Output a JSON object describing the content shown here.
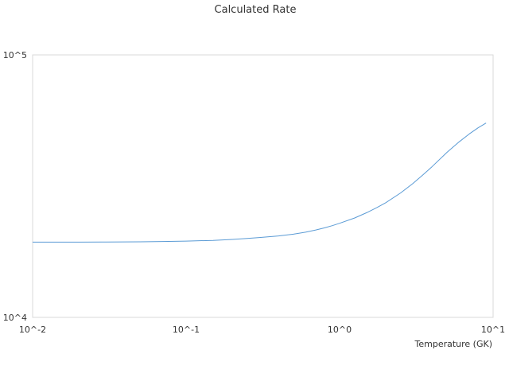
{
  "chart_data": {
    "type": "line",
    "title": "Calculated Rate",
    "xlabel": "Temperature (GK)",
    "ylabel": "",
    "x_scale": "log",
    "y_scale": "log",
    "xlim": [
      0.01,
      10
    ],
    "ylim": [
      10000,
      100000
    ],
    "x_tick_labels": [
      "10^-2",
      "10^-1",
      "10^0",
      "10^1"
    ],
    "y_tick_labels": [
      "10^4",
      "10^5"
    ],
    "grid": false,
    "legend": "none",
    "series": [
      {
        "color": "#5b9bd5",
        "x": [
          0.01,
          0.02,
          0.03,
          0.05,
          0.07,
          0.1,
          0.15,
          0.2,
          0.25,
          0.3,
          0.4,
          0.5,
          0.6,
          0.7,
          0.8,
          0.9,
          1.0,
          1.25,
          1.5,
          1.75,
          2.0,
          2.5,
          3.0,
          3.5,
          4.0,
          5.0,
          6.0,
          7.0,
          8.0,
          9.0
        ],
        "y": [
          19350,
          19360,
          19370,
          19400,
          19450,
          19520,
          19650,
          19820,
          19980,
          20150,
          20420,
          20750,
          21120,
          21520,
          21940,
          22380,
          22830,
          23900,
          25050,
          26200,
          27350,
          29800,
          32350,
          34950,
          37500,
          42500,
          46600,
          50000,
          52800,
          55000
        ]
      }
    ]
  }
}
